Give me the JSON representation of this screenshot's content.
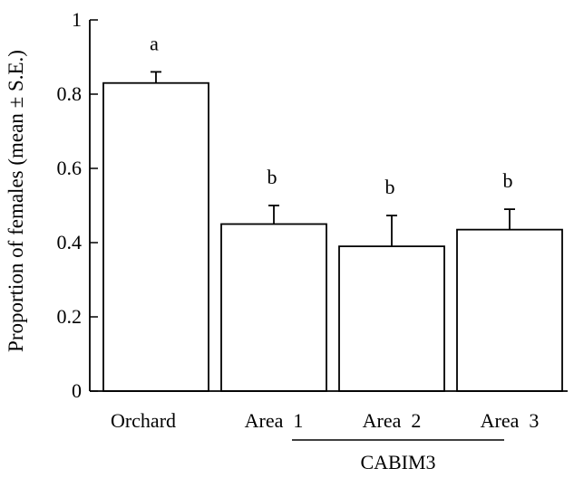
{
  "chart_data": {
    "type": "bar",
    "title": "",
    "xlabel": "",
    "ylabel": "Proportion of females (mean ± S.E.)",
    "ylim": [
      0,
      1
    ],
    "yticks": [
      0,
      0.2,
      0.4,
      0.6,
      0.8,
      1
    ],
    "ytick_labels": [
      "0",
      "0.2",
      "0.4",
      "0.6",
      "0.8",
      "1"
    ],
    "categories": [
      "Orchard",
      "Area  1",
      "Area  2",
      "Area  3"
    ],
    "values": [
      0.83,
      0.45,
      0.39,
      0.435
    ],
    "errors": [
      0.03,
      0.05,
      0.083,
      0.055
    ],
    "significance_letters": [
      "a",
      "b",
      "b",
      "b"
    ],
    "group_label": "CABIM3",
    "group_members": [
      "Area  1",
      "Area  2",
      "Area  3"
    ],
    "colors": {
      "bar_fill": "#ffffff",
      "stroke": "#000000"
    },
    "grid": false,
    "legend": "none"
  }
}
